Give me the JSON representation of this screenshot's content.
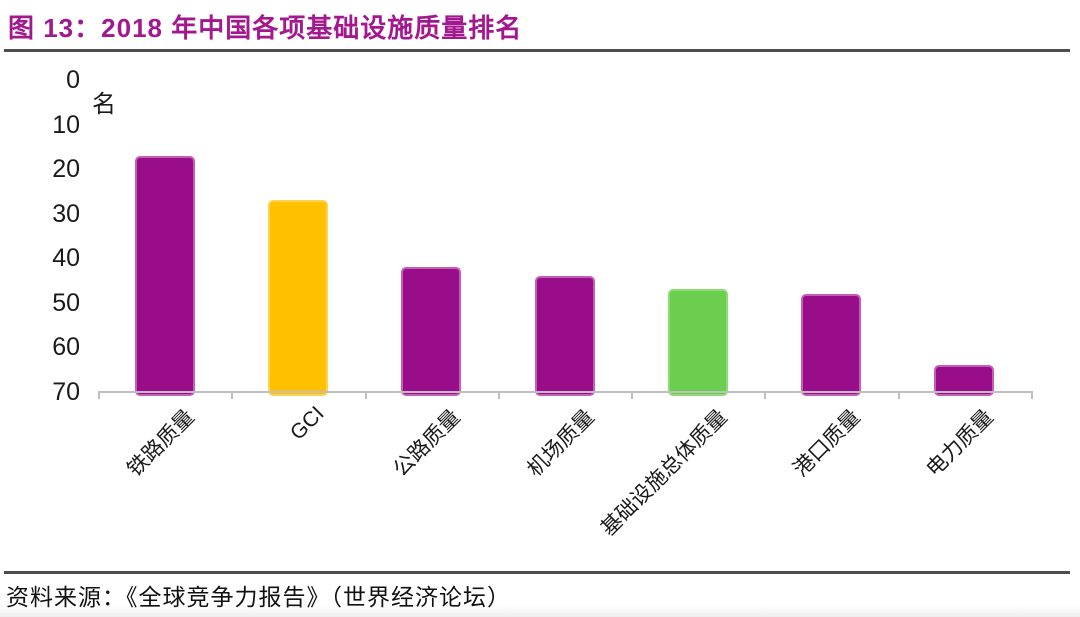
{
  "figure": {
    "title": "图 13：2018 年中国各项基础设施质量排名",
    "source": "资料来源：《全球竞争力报告》（世界经济论坛）"
  },
  "chart_data": {
    "type": "bar",
    "title": "图 13：2018 年中国各项基础设施质量排名",
    "ylabel": "名",
    "xlabel": "",
    "categories": [
      "铁路质量",
      "GCI",
      "公路质量",
      "机场质量",
      "基础设施总体质量",
      "港口质量",
      "电力质量"
    ],
    "values": [
      17,
      27,
      42,
      44,
      47,
      48,
      64
    ],
    "bar_colors": [
      "#990D8A",
      "#FFC000",
      "#990D8A",
      "#990D8A",
      "#6BCE4F",
      "#990D8A",
      "#990D8A"
    ],
    "bar_edge_colors": [
      "#C45FB5",
      "#FFD24D",
      "#C45FB5",
      "#C45FB5",
      "#8CDC74",
      "#C45FB5",
      "#C45FB5"
    ],
    "y_ticks": [
      0,
      10,
      20,
      30,
      40,
      50,
      60,
      70
    ],
    "ylim": [
      0,
      70
    ],
    "y_axis_inverted": true,
    "grid": false,
    "legend_position": "none",
    "source": "资料来源：《全球竞争力报告》（世界经济论坛）"
  },
  "colors": {
    "title": "#A3188F",
    "axis_line": "#BFBFBF",
    "text": "#1A1A1A",
    "rule": "#4D4D4D"
  }
}
